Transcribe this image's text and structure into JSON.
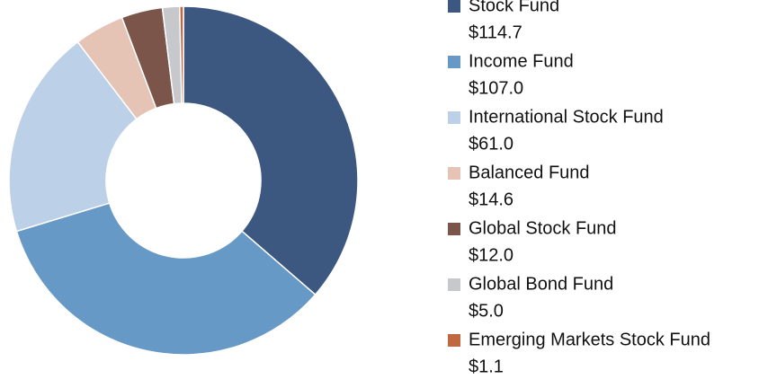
{
  "chart_data": {
    "type": "donut",
    "categories": [
      "Stock Fund",
      "Income Fund",
      "International Stock Fund",
      "Balanced Fund",
      "Global Stock Fund",
      "Global Bond Fund",
      "Emerging Markets Stock Fund"
    ],
    "values": [
      114.7,
      107.0,
      61.0,
      14.6,
      12.0,
      5.0,
      1.1
    ],
    "value_labels": [
      "$114.7",
      "$107.0",
      "$61.0",
      "$14.6",
      "$12.0",
      "$5.0",
      "$1.1"
    ],
    "colors": [
      "#3c5780",
      "#6699c5",
      "#bcd0e8",
      "#e5c3b5",
      "#7b5549",
      "#c6c8cc",
      "#c0683f"
    ]
  }
}
